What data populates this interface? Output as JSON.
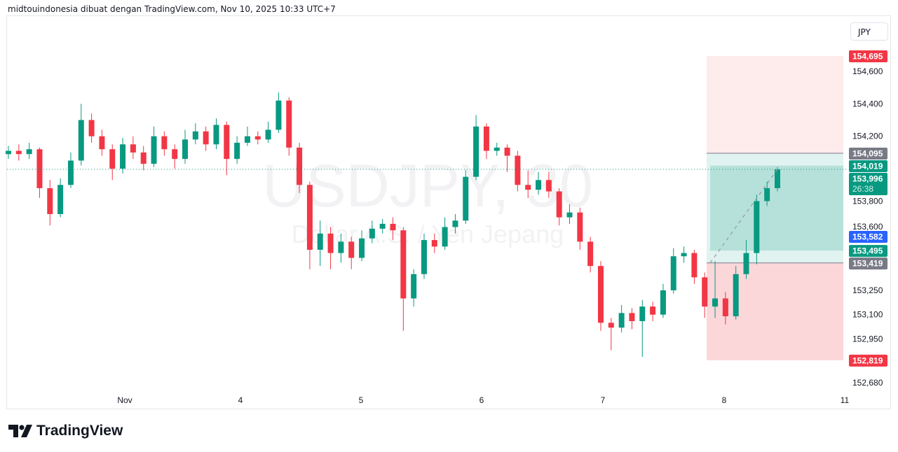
{
  "header": {
    "attribution": "midtouindonesia dibuat dengan TradingView.com, Nov 10, 2025 10:33 UTC+7"
  },
  "currency_button": "JPY",
  "watermark": {
    "symbol": "USDJPY, 30",
    "description": "Dollar A.S. / Yen Jepang"
  },
  "brand": {
    "name": "TradingView",
    "icon": "tradingview-logo-icon"
  },
  "colors": {
    "up": "#089981",
    "down": "#f23645",
    "target": "#089981",
    "stop": "#f23645",
    "alert": "#2962ff",
    "neutral": "#787b86"
  },
  "chart_data": {
    "type": "candlestick",
    "symbol": "USDJPY",
    "interval": "30",
    "ylim": [
      152620,
      154790
    ],
    "y_ticks": [
      "154,600",
      "154,400",
      "154,200",
      "153,800",
      "153,600",
      "153,250",
      "153,100",
      "152,950",
      "152,680"
    ],
    "y_tick_values": [
      154600,
      154400,
      154200,
      153800,
      153600,
      153250,
      153100,
      152950,
      152680
    ],
    "x_ticks": [
      "Nov",
      "4",
      "5",
      "6",
      "7",
      "8",
      "11"
    ],
    "candles": [
      [
        154090,
        154140,
        154060,
        154110
      ],
      [
        154110,
        154150,
        154050,
        154090
      ],
      [
        154090,
        154160,
        154060,
        154120
      ],
      [
        154120,
        154130,
        153820,
        153880
      ],
      [
        153880,
        153930,
        153650,
        153720
      ],
      [
        153720,
        153940,
        153700,
        153900
      ],
      [
        153900,
        154100,
        153880,
        154050
      ],
      [
        154050,
        154400,
        154020,
        154300
      ],
      [
        154300,
        154340,
        154160,
        154200
      ],
      [
        154200,
        154240,
        154080,
        154120
      ],
      [
        154120,
        154150,
        153930,
        154000
      ],
      [
        154000,
        154190,
        153970,
        154150
      ],
      [
        154150,
        154200,
        154060,
        154100
      ],
      [
        154100,
        154140,
        153990,
        154030
      ],
      [
        154030,
        154260,
        154010,
        154200
      ],
      [
        154200,
        154230,
        154080,
        154120
      ],
      [
        154120,
        154150,
        154000,
        154060
      ],
      [
        154060,
        154240,
        154030,
        154180
      ],
      [
        154180,
        154280,
        154150,
        154230
      ],
      [
        154230,
        154260,
        154110,
        154150
      ],
      [
        154150,
        154310,
        154120,
        154270
      ],
      [
        154270,
        154290,
        153960,
        154060
      ],
      [
        154060,
        154200,
        154030,
        154160
      ],
      [
        154160,
        154260,
        154140,
        154200
      ],
      [
        154200,
        154230,
        154150,
        154180
      ],
      [
        154180,
        154290,
        154160,
        154240
      ],
      [
        154240,
        154470,
        154220,
        154420
      ],
      [
        154420,
        154440,
        154080,
        154130
      ],
      [
        154130,
        154160,
        153850,
        153900
      ],
      [
        153900,
        153920,
        153380,
        153500
      ],
      [
        153500,
        153680,
        153400,
        153600
      ],
      [
        153600,
        153640,
        153380,
        153480
      ],
      [
        153480,
        153600,
        153420,
        153550
      ],
      [
        153550,
        153580,
        153380,
        153450
      ],
      [
        153450,
        153620,
        153430,
        153570
      ],
      [
        153570,
        153680,
        153540,
        153630
      ],
      [
        153630,
        153690,
        153600,
        153660
      ],
      [
        153660,
        153700,
        153560,
        153620
      ],
      [
        153620,
        153640,
        153000,
        153200
      ],
      [
        153200,
        153380,
        153150,
        153350
      ],
      [
        153350,
        153600,
        153320,
        153560
      ],
      [
        153560,
        153600,
        153480,
        153520
      ],
      [
        153520,
        153700,
        153500,
        153640
      ],
      [
        153640,
        153720,
        153600,
        153680
      ],
      [
        153680,
        153990,
        153660,
        153950
      ],
      [
        153950,
        154330,
        153930,
        154260
      ],
      [
        154260,
        154280,
        154060,
        154110
      ],
      [
        154110,
        154160,
        154080,
        154130
      ],
      [
        154130,
        154150,
        153980,
        154080
      ],
      [
        154080,
        154110,
        153860,
        153900
      ],
      [
        153900,
        153990,
        153820,
        153870
      ],
      [
        153870,
        153980,
        153840,
        153930
      ],
      [
        153930,
        153980,
        153820,
        153860
      ],
      [
        153860,
        153880,
        153650,
        153700
      ],
      [
        153700,
        153780,
        153660,
        153730
      ],
      [
        153730,
        153760,
        153500,
        153550
      ],
      [
        153550,
        153580,
        153360,
        153400
      ],
      [
        153400,
        153430,
        153000,
        153050
      ],
      [
        153050,
        153080,
        152880,
        153020
      ],
      [
        153020,
        153160,
        152990,
        153110
      ],
      [
        153110,
        153140,
        153010,
        153060
      ],
      [
        153060,
        153190,
        152840,
        153150
      ],
      [
        153150,
        153180,
        153060,
        153100
      ],
      [
        153100,
        153290,
        153080,
        153250
      ],
      [
        153250,
        153510,
        153230,
        153460
      ],
      [
        153460,
        153520,
        153420,
        153480
      ],
      [
        153480,
        153500,
        153290,
        153330
      ],
      [
        153330,
        153360,
        153080,
        153150
      ],
      [
        153150,
        153430,
        153080,
        153200
      ],
      [
        153200,
        153240,
        153040,
        153090
      ],
      [
        153090,
        153400,
        153070,
        153350
      ],
      [
        153350,
        153560,
        153320,
        153480
      ],
      [
        153480,
        153840,
        153410,
        153800
      ],
      [
        153800,
        153920,
        153770,
        153880
      ],
      [
        153880,
        154010,
        153860,
        153996
      ]
    ],
    "current_price": {
      "label": "153,996",
      "value": 153996,
      "countdown": "26:38"
    },
    "price_labels": [
      {
        "label": "154,695",
        "value": 154695,
        "kind": "stop"
      },
      {
        "label": "154,095",
        "value": 154095,
        "kind": "neutral"
      },
      {
        "label": "154,019",
        "value": 154019,
        "kind": "target"
      },
      {
        "label": "153,582",
        "value": 153582,
        "kind": "alert"
      },
      {
        "label": "153,495",
        "value": 153495,
        "kind": "target"
      },
      {
        "label": "153,419",
        "value": 153419,
        "kind": "neutral"
      },
      {
        "label": "152,819",
        "value": 152819,
        "kind": "stop"
      }
    ],
    "position_tool": {
      "entry": 153419,
      "target": 154095,
      "stop": 152819,
      "upper_zone_top": 154695
    }
  }
}
